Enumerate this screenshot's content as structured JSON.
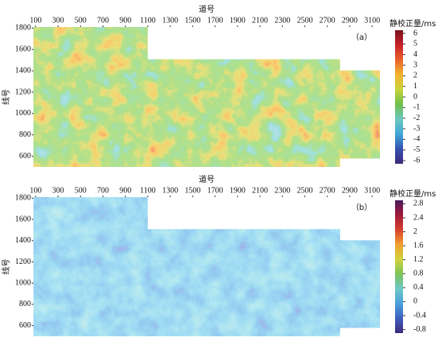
{
  "chart_data": [
    {
      "type": "heatmap",
      "panel_label": "（a）",
      "x_label": "道号",
      "y_label": "线号",
      "xlim": [
        80,
        3170
      ],
      "xticks": [
        100,
        300,
        500,
        700,
        900,
        1100,
        1300,
        1500,
        1700,
        1900,
        2100,
        2300,
        2500,
        2700,
        2900,
        3100
      ],
      "ylim": [
        500,
        1810
      ],
      "yticks": [
        600,
        800,
        1000,
        1200,
        1400,
        1600,
        1800
      ],
      "colorbar": {
        "title": "静校正量/ms",
        "lim": [
          -6.3,
          6.3
        ],
        "ticks": [
          6,
          5,
          4,
          3,
          2,
          1,
          0,
          -1,
          -2,
          -3,
          -4,
          -5,
          -6
        ],
        "colors": [
          "#3b2a7a",
          "#3650b0",
          "#41a6d6",
          "#6cc7c0",
          "#6dbf4a",
          "#c9d23a",
          "#f2b32c",
          "#e8632a",
          "#c8202a",
          "#7a1020"
        ]
      }
    },
    {
      "type": "heatmap",
      "panel_label": "（b）",
      "x_label": "道号",
      "y_label": "线号",
      "xlim": [
        80,
        3170
      ],
      "xticks": [
        100,
        300,
        500,
        700,
        900,
        1100,
        1300,
        1500,
        1700,
        1900,
        2100,
        2300,
        2500,
        2700,
        2900,
        3100
      ],
      "ylim": [
        500,
        1810
      ],
      "yticks": [
        600,
        800,
        1000,
        1200,
        1400,
        1600,
        1800
      ],
      "colorbar": {
        "title": "静校正量/ms",
        "lim": [
          -0.9,
          2.9
        ],
        "ticks": [
          2.8,
          2.4,
          2.0,
          1.6,
          1.2,
          0.8,
          0.4,
          0,
          -0.4,
          -0.8
        ],
        "colors": [
          "#3a2a7a",
          "#3f5fbf",
          "#4aa0da",
          "#6ec8c8",
          "#7cc35a",
          "#d2d23a",
          "#f0a030",
          "#d8402e",
          "#a01a3a",
          "#4a1a5a"
        ]
      }
    }
  ]
}
